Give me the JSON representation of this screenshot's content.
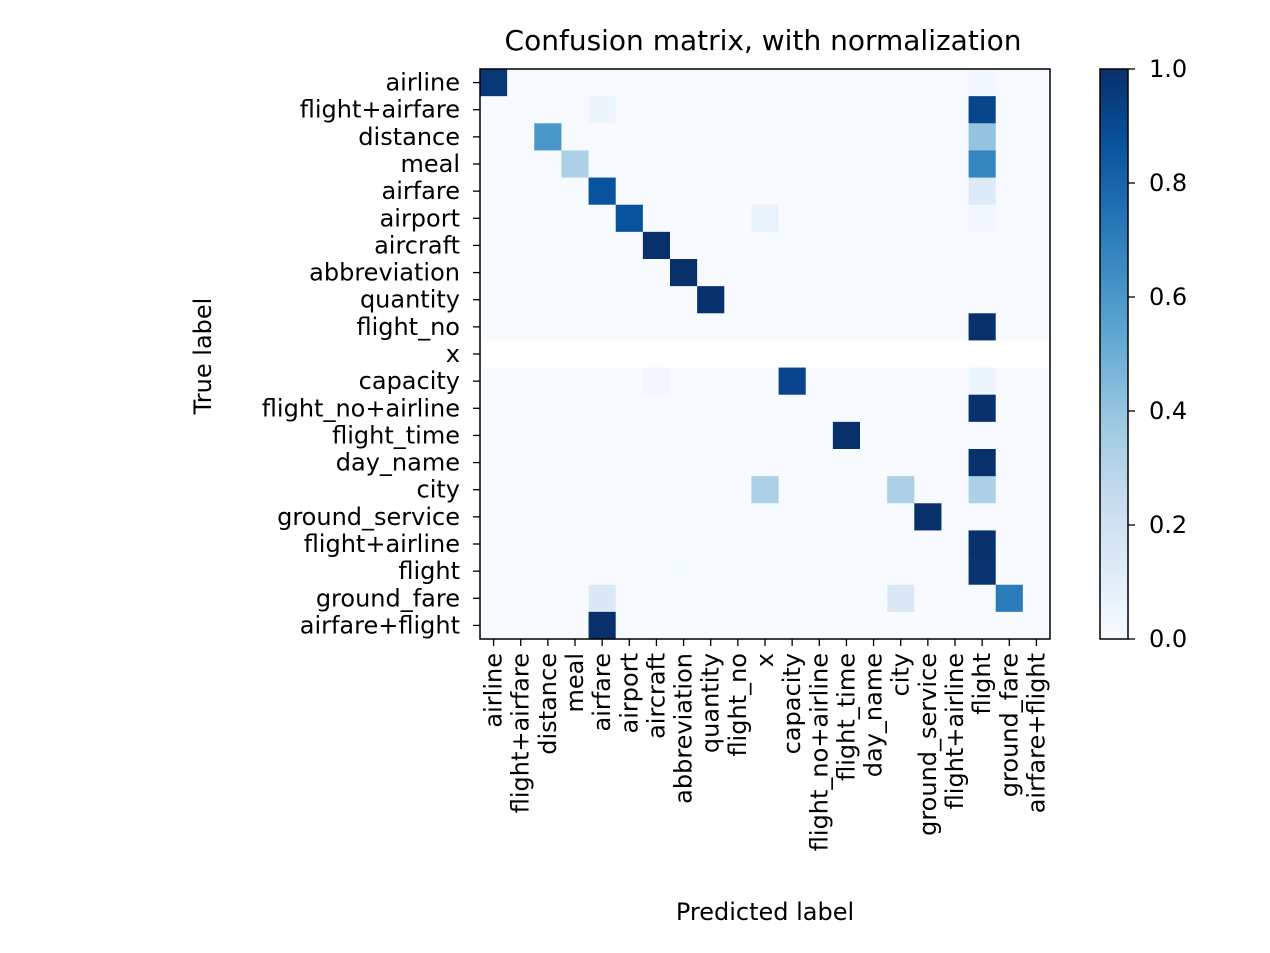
{
  "chart_data": {
    "type": "heatmap",
    "title": "Confusion matrix, with normalization",
    "xlabel": "Predicted label",
    "ylabel": "True label",
    "labels": [
      "airline",
      "flight+airfare",
      "distance",
      "meal",
      "airfare",
      "airport",
      "aircraft",
      "abbreviation",
      "quantity",
      "flight_no",
      "x",
      "capacity",
      "flight_no+airline",
      "flight_time",
      "day_name",
      "city",
      "ground_service",
      "flight+airline",
      "flight",
      "ground_fare",
      "airfare+flight"
    ],
    "colorbar": {
      "range": [
        0,
        1
      ],
      "ticks": [
        "0.0",
        "0.2",
        "0.4",
        "0.6",
        "0.8",
        "1.0"
      ],
      "colormap": "Blues"
    },
    "missing_rows": [
      "x"
    ],
    "matrix": [
      [
        0.97,
        0,
        0,
        0,
        0,
        0,
        0,
        0,
        0,
        0,
        0,
        0,
        0,
        0,
        0,
        0,
        0,
        0,
        0.03,
        0,
        0
      ],
      [
        0,
        0,
        0,
        0,
        0.05,
        0,
        0,
        0,
        0,
        0,
        0,
        0,
        0,
        0,
        0,
        0,
        0,
        0,
        0.92,
        0,
        0
      ],
      [
        0,
        0,
        0.6,
        0,
        0,
        0,
        0,
        0,
        0,
        0,
        0,
        0,
        0,
        0,
        0,
        0,
        0,
        0,
        0.4,
        0,
        0
      ],
      [
        0,
        0,
        0,
        0.33,
        0,
        0,
        0,
        0,
        0,
        0,
        0,
        0,
        0,
        0,
        0,
        0,
        0,
        0,
        0.67,
        0,
        0
      ],
      [
        0,
        0,
        0,
        0,
        0.87,
        0,
        0,
        0,
        0,
        0,
        0,
        0,
        0,
        0,
        0,
        0,
        0,
        0,
        0.13,
        0,
        0
      ],
      [
        0,
        0,
        0,
        0,
        0,
        0.87,
        0,
        0,
        0,
        0,
        0.07,
        0,
        0,
        0,
        0,
        0,
        0,
        0,
        0.03,
        0,
        0
      ],
      [
        0,
        0,
        0,
        0,
        0,
        0,
        1.0,
        0,
        0,
        0,
        0,
        0,
        0,
        0,
        0,
        0,
        0,
        0,
        0,
        0,
        0
      ],
      [
        0,
        0,
        0,
        0,
        0,
        0,
        0,
        1.0,
        0,
        0,
        0,
        0,
        0,
        0,
        0,
        0,
        0,
        0,
        0,
        0,
        0
      ],
      [
        0,
        0,
        0,
        0,
        0,
        0,
        0,
        0,
        1.0,
        0,
        0,
        0,
        0,
        0,
        0,
        0,
        0,
        0,
        0,
        0,
        0
      ],
      [
        0,
        0,
        0,
        0,
        0,
        0,
        0,
        0,
        0,
        0,
        0,
        0,
        0,
        0,
        0,
        0,
        0,
        0,
        1.0,
        0,
        0
      ],
      [
        null,
        null,
        null,
        null,
        null,
        null,
        null,
        null,
        null,
        null,
        null,
        null,
        null,
        null,
        null,
        null,
        null,
        null,
        null,
        null,
        null
      ],
      [
        0,
        0,
        0,
        0,
        0,
        0,
        0.03,
        0,
        0,
        0,
        0,
        0.92,
        0,
        0,
        0,
        0,
        0,
        0,
        0.05,
        0,
        0
      ],
      [
        0,
        0,
        0,
        0,
        0,
        0,
        0,
        0,
        0,
        0,
        0,
        0,
        0,
        0,
        0,
        0,
        0,
        0,
        1.0,
        0,
        0
      ],
      [
        0,
        0,
        0,
        0,
        0,
        0,
        0,
        0,
        0,
        0,
        0,
        0,
        0,
        1.0,
        0,
        0,
        0,
        0,
        0,
        0,
        0
      ],
      [
        0,
        0,
        0,
        0,
        0,
        0,
        0,
        0,
        0,
        0,
        0,
        0,
        0,
        0,
        0,
        0,
        0,
        0,
        1.0,
        0,
        0
      ],
      [
        0,
        0,
        0,
        0,
        0,
        0,
        0,
        0,
        0,
        0,
        0.33,
        0,
        0,
        0,
        0,
        0.33,
        0,
        0,
        0.33,
        0,
        0
      ],
      [
        0,
        0,
        0,
        0,
        0,
        0,
        0,
        0,
        0,
        0,
        0,
        0,
        0,
        0,
        0,
        0,
        1.0,
        0,
        0,
        0,
        0
      ],
      [
        0,
        0,
        0,
        0,
        0,
        0,
        0,
        0,
        0,
        0,
        0,
        0,
        0,
        0,
        0,
        0,
        0,
        0,
        1.0,
        0,
        0
      ],
      [
        0,
        0,
        0,
        0,
        0,
        0,
        0,
        0.01,
        0,
        0,
        0,
        0,
        0,
        0,
        0,
        0,
        0,
        0,
        0.99,
        0,
        0
      ],
      [
        0,
        0,
        0,
        0,
        0.14,
        0,
        0,
        0,
        0,
        0,
        0,
        0,
        0,
        0,
        0,
        0.14,
        0,
        0,
        0,
        0.71,
        0
      ],
      [
        0,
        0,
        0,
        0,
        1.0,
        0,
        0,
        0,
        0,
        0,
        0,
        0,
        0,
        0,
        0,
        0,
        0,
        0,
        0,
        0,
        0
      ]
    ]
  }
}
